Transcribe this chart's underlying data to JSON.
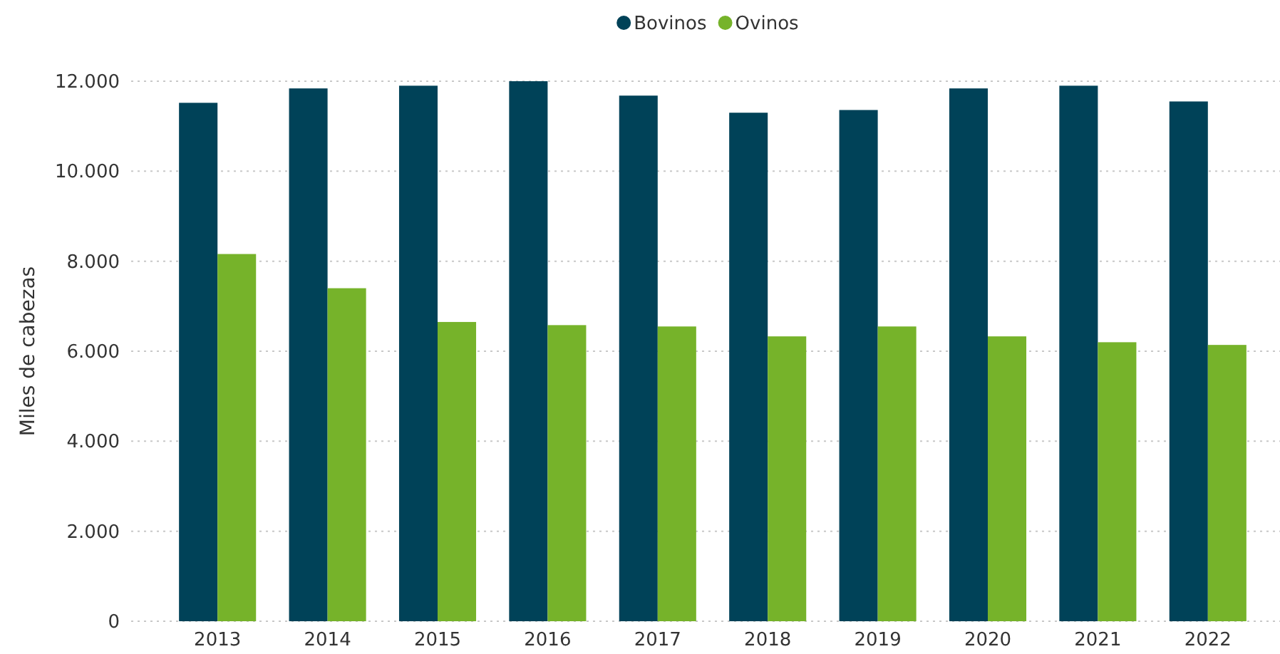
{
  "chart_data": {
    "type": "bar",
    "ylabel": "Miles de cabezas",
    "categories": [
      "2013",
      "2014",
      "2015",
      "2016",
      "2017",
      "2018",
      "2019",
      "2020",
      "2021",
      "2022"
    ],
    "series": [
      {
        "name": "Bovinos",
        "color": "#004258",
        "values": [
          11520,
          11840,
          11900,
          12000,
          11680,
          11300,
          11360,
          11840,
          11900,
          11550
        ]
      },
      {
        "name": "Ovinos",
        "color": "#76b32a",
        "values": [
          8160,
          7400,
          6650,
          6580,
          6550,
          6330,
          6550,
          6330,
          6200,
          6140
        ]
      }
    ],
    "ylim": [
      0,
      12000
    ],
    "yticks": [
      {
        "value": 0,
        "label": "0"
      },
      {
        "value": 2000,
        "label": "2.000"
      },
      {
        "value": 4000,
        "label": "4.000"
      },
      {
        "value": 6000,
        "label": "6.000"
      },
      {
        "value": 8000,
        "label": "8.000"
      },
      {
        "value": 10000,
        "label": "10.000"
      },
      {
        "value": 12000,
        "label": "12.000"
      }
    ],
    "grid": "y",
    "legend": "top"
  }
}
